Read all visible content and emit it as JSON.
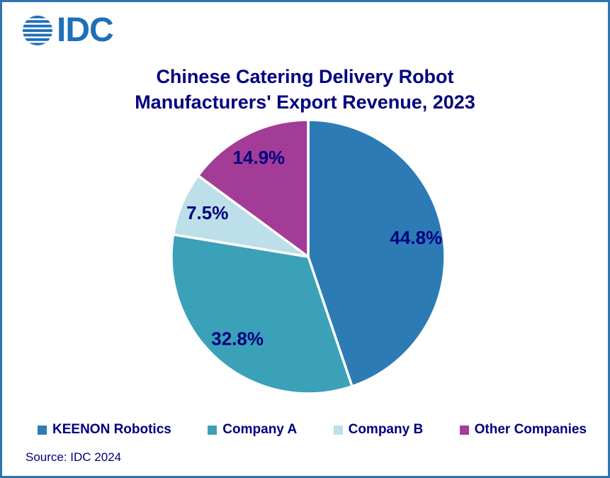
{
  "logo": {
    "text": "IDC"
  },
  "title": {
    "line1": "Chinese Catering Delivery Robot",
    "line2": "Manufacturers' Export Revenue, 2023"
  },
  "source": "Source: IDC 2024",
  "colors": {
    "title_navy": "#00007F",
    "border_blue": "#2E74B5",
    "logo_blue": "#1E6FBA"
  },
  "chart_data": {
    "type": "pie",
    "title": "Chinese Catering Delivery Robot Manufacturers' Export Revenue, 2023",
    "units": "%",
    "start_angle_deg": 0,
    "direction": "clockwise",
    "label_color": "#00007F",
    "legend_position": "bottom",
    "slices": [
      {
        "label": "KEENON Robotics",
        "value": 44.8,
        "display": "44.8%",
        "color": "#2C7BB5"
      },
      {
        "label": "Company A",
        "value": 32.8,
        "display": "32.8%",
        "color": "#3AA1B8"
      },
      {
        "label": "Company B",
        "value": 7.5,
        "display": "7.5%",
        "color": "#BCDFE9"
      },
      {
        "label": "Other Companies",
        "value": 14.9,
        "display": "14.9%",
        "color": "#A23C97"
      }
    ]
  }
}
